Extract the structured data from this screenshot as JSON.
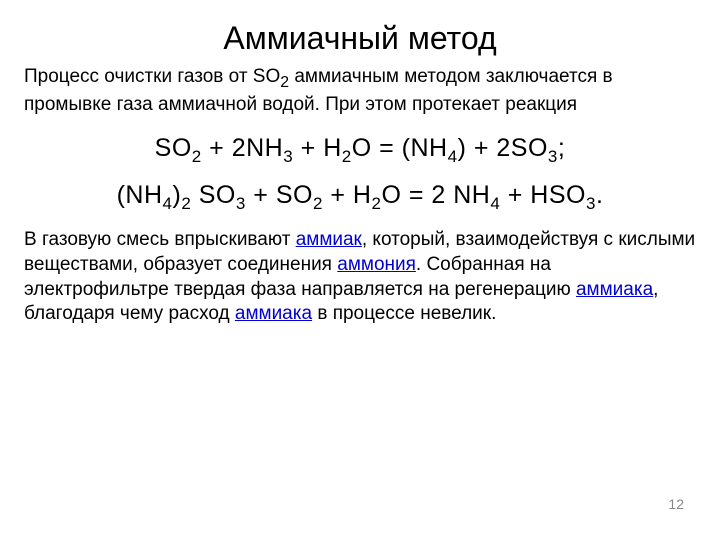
{
  "title": "Аммиачный метод",
  "intro": {
    "part1": "Процесс очистки газов от SO",
    "sub1": "2",
    "part2": " аммиачным методом заключается в промывке газа аммиачной водой. При этом протекает реакция"
  },
  "equation1": {
    "full": "SO₂ + 2NH₃ + H₂O = (NH₄) + 2SO₃;"
  },
  "equation2": {
    "full": "(NH₄)₂ SO₃ + SO₂ + H₂O = 2 NH₄ + HSO₃."
  },
  "body": {
    "t1": "В газовую смесь впрыскивают ",
    "h1": "аммиак",
    "t2": ", который, взаимодействуя с кислыми веществами, образует соединения ",
    "h2": "аммония",
    "t3": ". Собранная на электрофильтре твердая фаза направляется на регенерацию ",
    "h3": "аммиака",
    "t4": ", благодаря чему расход ",
    "h4": "аммиака",
    "t5": " в процессе невелик."
  },
  "pageNumber": "12",
  "colors": {
    "text": "#000000",
    "highlight": "#0000d0",
    "background": "#ffffff",
    "pageNum": "#888888"
  },
  "typography": {
    "titleSize": 32,
    "bodySize": 19,
    "equationSize": 25,
    "pageNumSize": 14
  }
}
